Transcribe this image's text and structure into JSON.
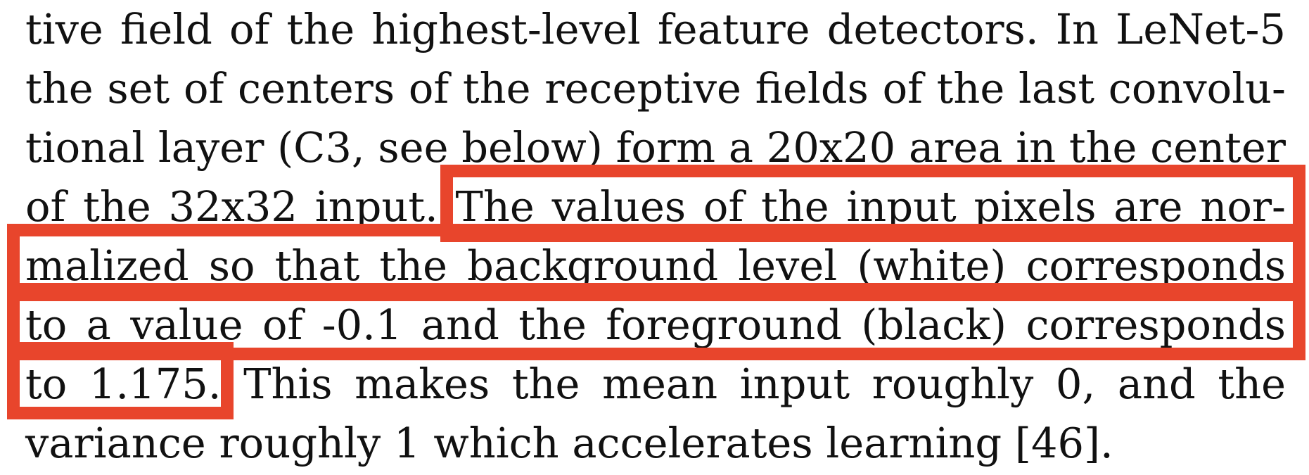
{
  "paragraph": {
    "lines": [
      "tive field of the highest-level feature detectors. In LeNet-5",
      "the set of centers of the receptive fields of the last convolu-",
      "tional layer (C3, see below) form a 20x20 area in the center",
      "of the 32x32 input. The values of the input pixels are nor-",
      "malized so that the background level (white) corresponds",
      "to a value of -0.1 and the foreground (black) corresponds",
      "to 1.175. This makes the mean input roughly 0, and the",
      "variance roughly 1 which accelerates learning [46]."
    ]
  },
  "highlight": {
    "color": "#e8452c"
  }
}
